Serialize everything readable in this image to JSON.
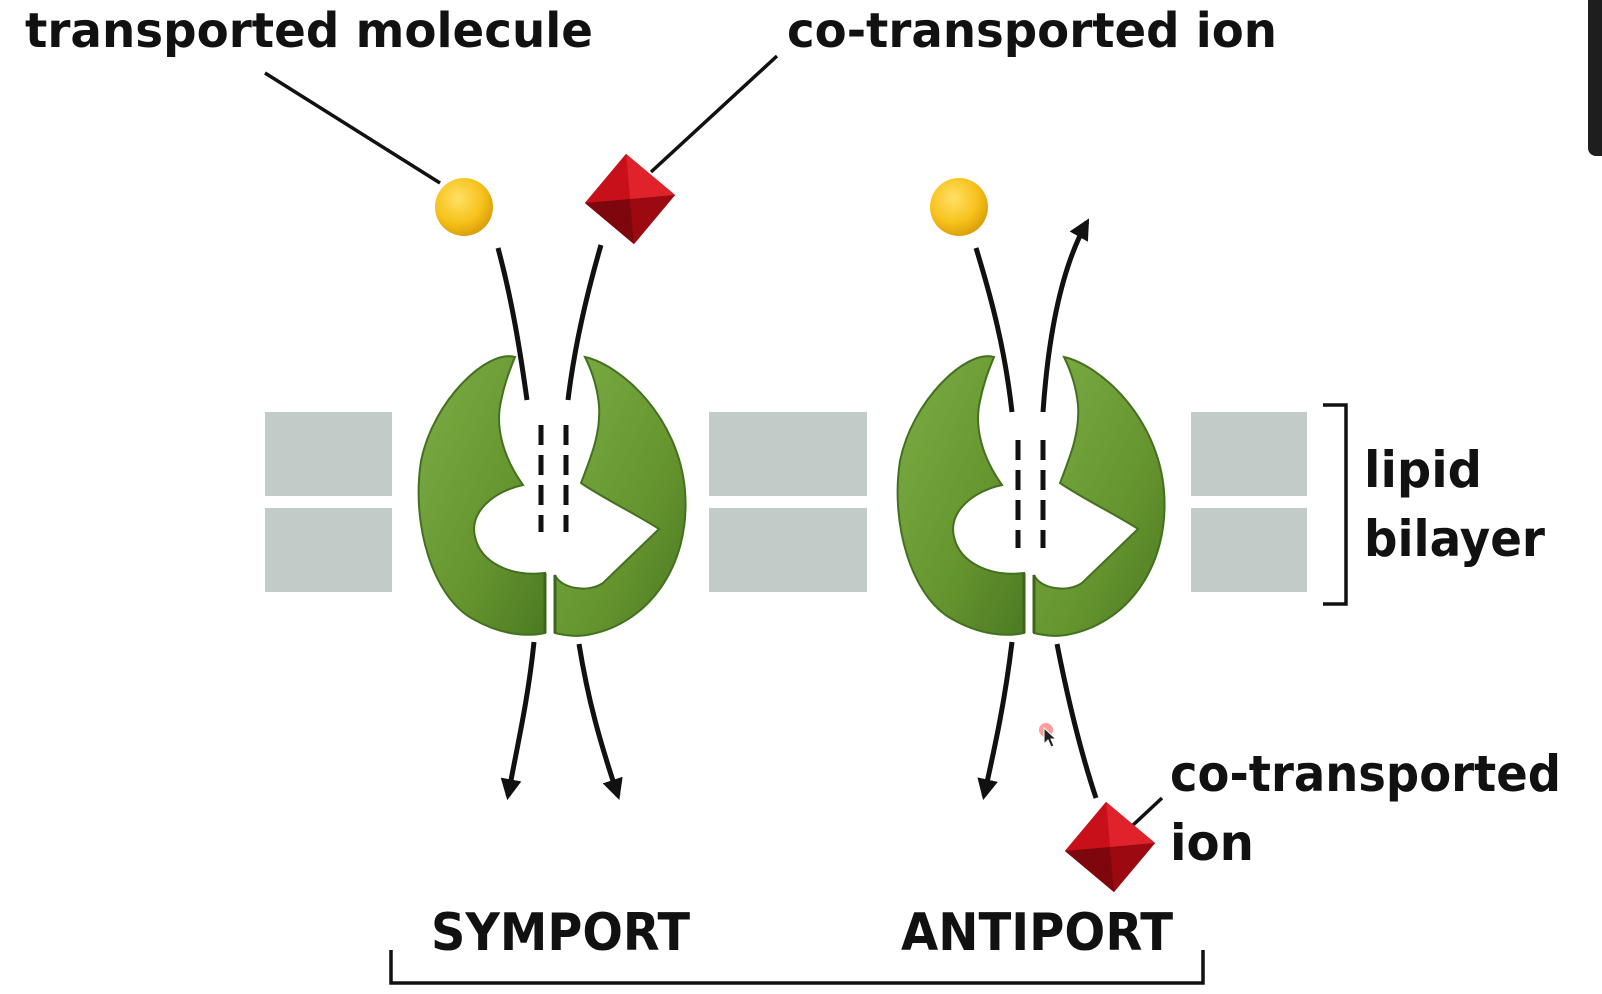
{
  "labels": {
    "transported_molecule": "transported molecule",
    "co_transported_ion_top": "co-transported ion",
    "lipid": "lipid",
    "bilayer": "bilayer",
    "co_transported_ion_bottom_line1": "co-transported",
    "co_transported_ion_bottom_line2": "ion",
    "symport": "SYMPORT",
    "antiport": "ANTIPORT"
  },
  "colors": {
    "membrane": "#c3cbc8",
    "protein": "#6a9b38",
    "protein_dark": "#4a7424",
    "molecule": "#f7c21b",
    "ion": "#c8101a",
    "ink": "#111111"
  },
  "icons": {
    "molecule": "yellow-sphere-icon",
    "ion": "red-diamond-icon",
    "cursor": "mouse-cursor-icon"
  }
}
